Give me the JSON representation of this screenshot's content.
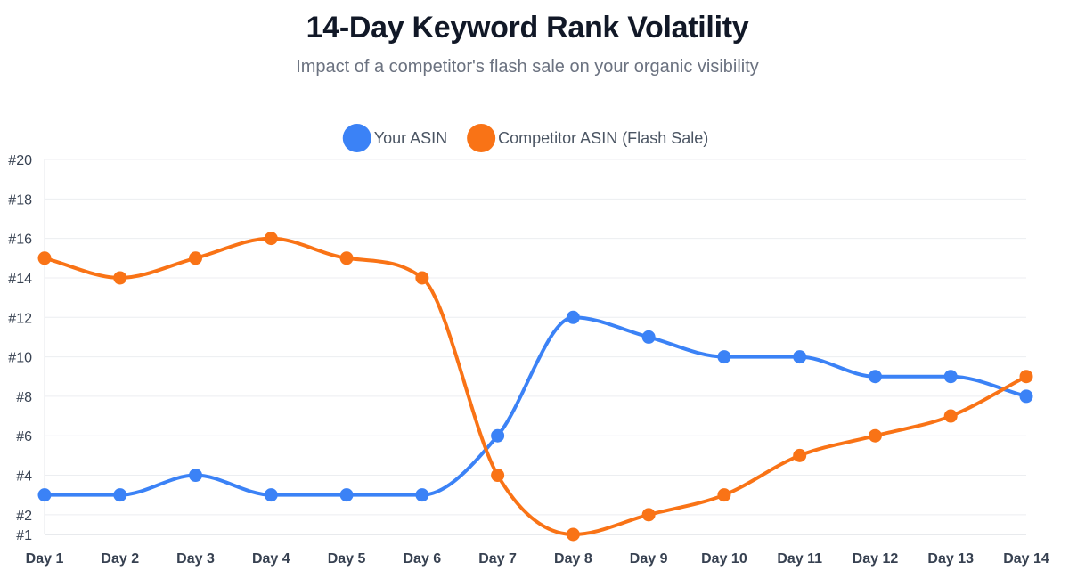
{
  "chart_data": {
    "type": "line",
    "title": "14-Day Keyword Rank Volatility",
    "subtitle": "Impact of a competitor's flash sale on your organic visibility",
    "categories": [
      "Day 1",
      "Day 2",
      "Day 3",
      "Day 4",
      "Day 5",
      "Day 6",
      "Day 7",
      "Day 8",
      "Day 9",
      "Day 10",
      "Day 11",
      "Day 12",
      "Day 13",
      "Day 14"
    ],
    "series": [
      {
        "name": "Your ASIN",
        "color": "#3b82f6",
        "values": [
          3,
          3,
          4,
          3,
          3,
          3,
          6,
          12,
          11,
          10,
          10,
          9,
          9,
          8
        ]
      },
      {
        "name": "Competitor ASIN (Flash Sale)",
        "color": "#f97316",
        "values": [
          15,
          14,
          15,
          16,
          15,
          14,
          4,
          1,
          2,
          3,
          5,
          6,
          7,
          9
        ]
      }
    ],
    "ylim": [
      1,
      20
    ],
    "y_ticks": [
      {
        "value": 1,
        "label": "#1"
      },
      {
        "value": 2,
        "label": "#2"
      },
      {
        "value": 4,
        "label": "#4"
      },
      {
        "value": 6,
        "label": "#6"
      },
      {
        "value": 8,
        "label": "#8"
      },
      {
        "value": 10,
        "label": "#10"
      },
      {
        "value": 12,
        "label": "#12"
      },
      {
        "value": 14,
        "label": "#14"
      },
      {
        "value": 16,
        "label": "#16"
      },
      {
        "value": 18,
        "label": "#18"
      },
      {
        "value": 20,
        "label": "#20"
      }
    ],
    "grid": true,
    "legend": "top-center",
    "xlabel": "",
    "ylabel": ""
  }
}
